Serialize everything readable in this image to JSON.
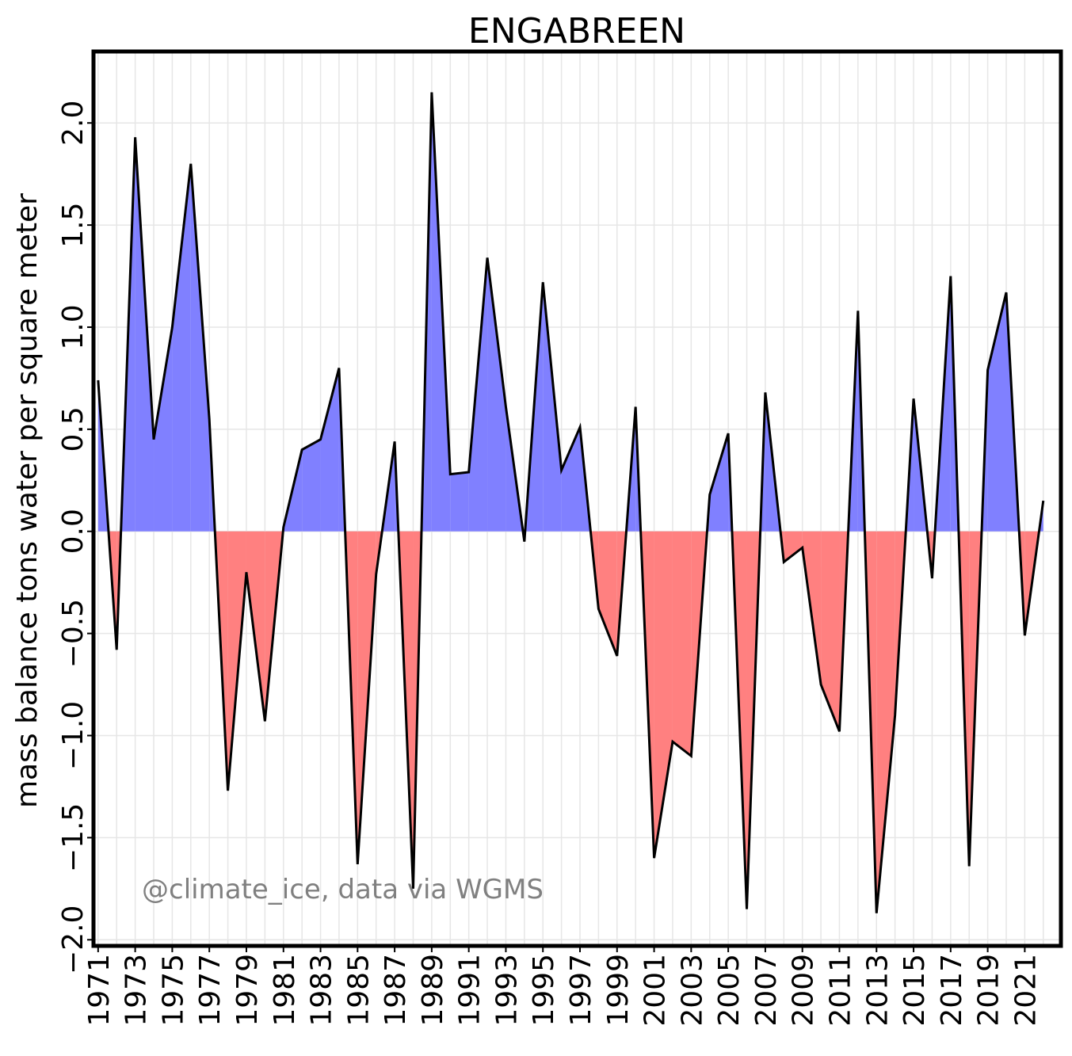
{
  "chart_data": {
    "type": "area",
    "title": "ENGABREEN",
    "ylabel": "mass balance tons water per square meter",
    "xlabel": "",
    "credit": "@climate_ice, data via WGMS",
    "x": [
      1971,
      1972,
      1973,
      1974,
      1975,
      1976,
      1977,
      1978,
      1979,
      1980,
      1981,
      1982,
      1983,
      1984,
      1985,
      1986,
      1987,
      1988,
      1989,
      1990,
      1991,
      1992,
      1993,
      1994,
      1995,
      1996,
      1997,
      1998,
      1999,
      2000,
      2001,
      2002,
      2003,
      2004,
      2005,
      2006,
      2007,
      2008,
      2009,
      2010,
      2011,
      2012,
      2013,
      2014,
      2015,
      2016,
      2017,
      2018,
      2019,
      2020,
      2021,
      2022
    ],
    "values": [
      0.74,
      -0.58,
      1.93,
      0.45,
      1.0,
      1.8,
      0.55,
      -1.27,
      -0.2,
      -0.93,
      0.02,
      0.4,
      0.45,
      0.8,
      -1.63,
      -0.21,
      0.44,
      -1.75,
      2.15,
      0.28,
      0.29,
      1.34,
      0.61,
      -0.05,
      1.22,
      0.3,
      0.51,
      -0.38,
      -0.61,
      0.61,
      -1.6,
      -1.03,
      -1.1,
      0.18,
      0.48,
      -1.85,
      0.68,
      -0.15,
      -0.08,
      -0.75,
      -0.98,
      1.08,
      -1.87,
      -0.9,
      0.65,
      -0.23,
      1.25,
      -1.64,
      0.79,
      1.17,
      -0.51,
      0.15
    ],
    "xlim": [
      1970.75,
      1973.0
    ],
    "ylim": [
      -2.03,
      2.35
    ],
    "x_ticks": [
      1971,
      1973,
      1975,
      1977,
      1979,
      1981,
      1983,
      1985,
      1987,
      1989,
      1991,
      1993,
      1995,
      1997,
      1999,
      2001,
      2003,
      2005,
      2007,
      2009,
      2011,
      2013,
      2015,
      2017,
      2019,
      2021
    ],
    "x_tick_labels": [
      "1971",
      "1973",
      "1975",
      "1977",
      "1979",
      "1981",
      "1983",
      "1985",
      "1987",
      "1989",
      "1991",
      "1993",
      "1995",
      "1997",
      "1999",
      "2001",
      "2003",
      "2005",
      "2007",
      "2009",
      "2011",
      "2013",
      "2015",
      "2017",
      "2019",
      "2021"
    ],
    "y_ticks": [
      -2.0,
      -1.5,
      -1.0,
      -0.5,
      0.0,
      0.5,
      1.0,
      1.5,
      2.0
    ],
    "y_tick_labels": [
      "−2.0",
      "−1.5",
      "−1.0",
      "−0.5",
      "0.0",
      "0.5",
      "1.0",
      "1.5",
      "2.0"
    ],
    "grid": true,
    "colors": {
      "positive": "#8080ff",
      "negative": "#ff8080",
      "line": "#000000",
      "grid": "#e6e6e6",
      "frame": "#000000"
    }
  }
}
